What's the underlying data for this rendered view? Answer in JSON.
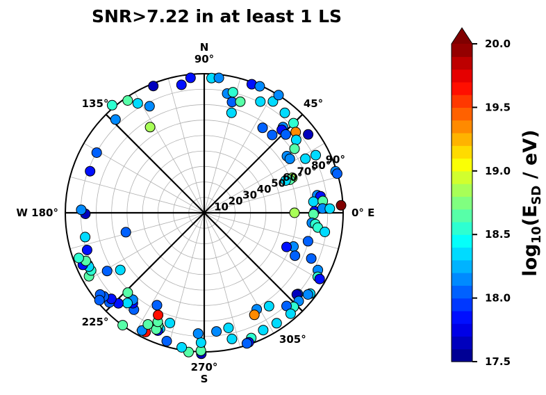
{
  "chart_data": {
    "type": "scatter",
    "subtype": "polar-skyplot",
    "title": "SNR>7.22 in at least 1 LS",
    "azimuth_labels": [
      {
        "az": 0,
        "text": "0° E"
      },
      {
        "az": 45,
        "text": "45°"
      },
      {
        "az": 90,
        "text": "90°",
        "extra": "N"
      },
      {
        "az": 135,
        "text": "135°"
      },
      {
        "az": 180,
        "text": "W  180°"
      },
      {
        "az": 225,
        "text": "225°"
      },
      {
        "az": 270,
        "text": "270°",
        "extra": "S"
      },
      {
        "az": 305,
        "text": "305°"
      }
    ],
    "sector_lines_az": [
      45,
      90,
      135,
      180,
      225,
      270,
      315,
      360
    ],
    "radial_ticks": [
      {
        "r": 10,
        "text": "10"
      },
      {
        "r": 20,
        "text": "20"
      },
      {
        "r": 30,
        "text": "30"
      },
      {
        "r": 40,
        "text": "40"
      },
      {
        "r": 50,
        "text": "50"
      },
      {
        "r": 60,
        "text": "60°"
      },
      {
        "r": 70,
        "text": "70°"
      },
      {
        "r": 80,
        "text": "80°"
      },
      {
        "r": 90,
        "text": "90°"
      }
    ],
    "radial_label_az": 22.5,
    "r_range": [
      0,
      90
    ],
    "grid": true,
    "points": [
      {
        "az": 86.9,
        "r": 87.3,
        "v": 18.4
      },
      {
        "az": 83.8,
        "r": 87.8,
        "v": 18.1
      },
      {
        "az": 95.8,
        "r": 87.8,
        "v": 17.9
      },
      {
        "az": 100.1,
        "r": 84.1,
        "v": 17.9
      },
      {
        "az": 111.9,
        "r": 88.4,
        "v": 17.7
      },
      {
        "az": 117.2,
        "r": 77.5,
        "v": 18.2
      },
      {
        "az": 121.3,
        "r": 82.9,
        "v": 18.4
      },
      {
        "az": 124.3,
        "r": 88.0,
        "v": 18.6
      },
      {
        "az": 133.6,
        "r": 83.3,
        "v": 18.2
      },
      {
        "az": 130.6,
        "r": 91.7,
        "v": 18.5
      },
      {
        "az": 122.3,
        "r": 65.6,
        "v": 18.8
      },
      {
        "az": 150.8,
        "r": 79.8,
        "v": 18.0
      },
      {
        "az": 160.0,
        "r": 78.7,
        "v": 17.9
      },
      {
        "az": 79.1,
        "r": 78.6,
        "v": 18.2
      },
      {
        "az": 76.6,
        "r": 80.2,
        "v": 18.5
      },
      {
        "az": 75.9,
        "r": 73.9,
        "v": 18.0
      },
      {
        "az": 74.7,
        "r": 67.1,
        "v": 18.4
      },
      {
        "az": 72.0,
        "r": 75.6,
        "v": 18.7
      },
      {
        "az": 69.7,
        "r": 88.7,
        "v": 17.9
      },
      {
        "az": 66.3,
        "r": 89.4,
        "v": 18.2
      },
      {
        "az": 63.2,
        "r": 80.6,
        "v": 18.3
      },
      {
        "az": 58.3,
        "r": 84.7,
        "v": 18.4
      },
      {
        "az": 57.7,
        "r": 90.1,
        "v": 18.2
      },
      {
        "az": 55.5,
        "r": 66.7,
        "v": 18.0
      },
      {
        "az": 51.1,
        "r": 83.1,
        "v": 18.4
      },
      {
        "az": 48.8,
        "r": 66.9,
        "v": 18.0
      },
      {
        "az": 47.4,
        "r": 75.4,
        "v": 18.1
      },
      {
        "az": 46.9,
        "r": 73.5,
        "v": 17.9
      },
      {
        "az": 45.1,
        "r": 81.9,
        "v": 18.5
      },
      {
        "az": 43.8,
        "r": 73.2,
        "v": 18.0
      },
      {
        "az": 41.4,
        "r": 79.0,
        "v": 19.4
      },
      {
        "az": 38.4,
        "r": 76.0,
        "v": 18.4
      },
      {
        "az": 37.0,
        "r": 84.3,
        "v": 17.7
      },
      {
        "az": 35.3,
        "r": 71.7,
        "v": 18.6
      },
      {
        "az": 34.4,
        "r": 64.9,
        "v": 18.1
      },
      {
        "az": 32.2,
        "r": 65.5,
        "v": 18.2
      },
      {
        "az": 28.1,
        "r": 74.3,
        "v": 18.4
      },
      {
        "az": 27.3,
        "r": 81.3,
        "v": 18.3
      },
      {
        "az": 21.7,
        "r": 61.4,
        "v": 18.8
      },
      {
        "az": 21.1,
        "r": 59.4,
        "v": 18.6
      },
      {
        "az": 21.6,
        "r": 56.7,
        "v": 18.3
      },
      {
        "az": 17.5,
        "r": 89.2,
        "v": 18.2
      },
      {
        "az": 16.4,
        "r": 89.8,
        "v": 18.0
      },
      {
        "az": 3.1,
        "r": 88.8,
        "v": 20.1
      },
      {
        "az": 0.8,
        "r": 71.5,
        "v": 17.9
      },
      {
        "az": 359.3,
        "r": 70.8,
        "v": 18.6
      },
      {
        "az": 8.8,
        "r": 74.1,
        "v": 18.2
      },
      {
        "az": 8.1,
        "r": 76.1,
        "v": 17.9
      },
      {
        "az": 5.8,
        "r": 71.1,
        "v": 18.3
      },
      {
        "az": 5.7,
        "r": 77.2,
        "v": 18.6
      },
      {
        "az": 2.1,
        "r": 76.7,
        "v": 18.2
      },
      {
        "az": 1.9,
        "r": 81.4,
        "v": 18.3
      },
      {
        "az": 0.0,
        "r": 58.5,
        "v": 18.8
      },
      {
        "az": 354.7,
        "r": 70.0,
        "v": 18.2
      },
      {
        "az": 354.2,
        "r": 72.3,
        "v": 18.5
      },
      {
        "az": 352.6,
        "r": 74.2,
        "v": 18.5
      },
      {
        "az": 351.0,
        "r": 79.1,
        "v": 18.3
      },
      {
        "az": 344.7,
        "r": 69.7,
        "v": 18.0
      },
      {
        "az": 339.3,
        "r": 61.8,
        "v": 18.2
      },
      {
        "az": 337.5,
        "r": 57.7,
        "v": 17.9
      },
      {
        "az": 334.7,
        "r": 65.0,
        "v": 18.0
      },
      {
        "az": 336.9,
        "r": 75.4,
        "v": 18.0
      },
      {
        "az": 333.3,
        "r": 82.4,
        "v": 18.1
      },
      {
        "az": 330.6,
        "r": 84.4,
        "v": 18.5
      },
      {
        "az": 330.2,
        "r": 86.2,
        "v": 17.9
      },
      {
        "az": 322.7,
        "r": 86.3,
        "v": 18.3
      },
      {
        "az": 321.8,
        "r": 85.5,
        "v": 18.2
      },
      {
        "az": 319.1,
        "r": 80.3,
        "v": 18.0
      },
      {
        "az": 318.6,
        "r": 79.9,
        "v": 17.7
      },
      {
        "az": 317.0,
        "r": 83.7,
        "v": 18.1
      },
      {
        "az": 313.6,
        "r": 84.0,
        "v": 18.5
      },
      {
        "az": 311.5,
        "r": 80.5,
        "v": 18.0
      },
      {
        "az": 310.6,
        "r": 86.0,
        "v": 18.3
      },
      {
        "az": 304.8,
        "r": 73.6,
        "v": 18.4
      },
      {
        "az": 303.3,
        "r": 85.5,
        "v": 18.4
      },
      {
        "az": 298.6,
        "r": 71.1,
        "v": 18.1
      },
      {
        "az": 296.2,
        "r": 73.6,
        "v": 19.4
      },
      {
        "az": 296.7,
        "r": 85.0,
        "v": 18.3
      },
      {
        "az": 290.6,
        "r": 86.6,
        "v": 18.5
      },
      {
        "az": 289.0,
        "r": 88.6,
        "v": 17.8
      },
      {
        "az": 288.1,
        "r": 88.9,
        "v": 18.0
      },
      {
        "az": 282.4,
        "r": 83.6,
        "v": 18.4
      },
      {
        "az": 281.9,
        "r": 76.1,
        "v": 18.3
      },
      {
        "az": 275.9,
        "r": 77.2,
        "v": 18.1
      },
      {
        "az": 268.8,
        "r": 91.3,
        "v": 17.7
      },
      {
        "az": 268.6,
        "r": 89.3,
        "v": 18.6
      },
      {
        "az": 268.6,
        "r": 84.0,
        "v": 18.3
      },
      {
        "az": 267.1,
        "r": 78.2,
        "v": 18.1
      },
      {
        "az": 263.6,
        "r": 90.7,
        "v": 18.6
      },
      {
        "az": 260.5,
        "r": 88.3,
        "v": 18.4
      },
      {
        "az": 253.7,
        "r": 86.5,
        "v": 18.0
      },
      {
        "az": 252.7,
        "r": 74.7,
        "v": 18.4
      },
      {
        "az": 249.1,
        "r": 80.3,
        "v": 18.4
      },
      {
        "az": 248.5,
        "r": 82.0,
        "v": 17.9
      },
      {
        "az": 247.7,
        "r": 78.5,
        "v": 18.6
      },
      {
        "az": 247.6,
        "r": 81.6,
        "v": 18.6
      },
      {
        "az": 246.9,
        "r": 76.7,
        "v": 18.6
      },
      {
        "az": 245.7,
        "r": 72.6,
        "v": 19.6
      },
      {
        "az": 243.8,
        "r": 86.0,
        "v": 19.7
      },
      {
        "az": 242.1,
        "r": 86.2,
        "v": 18.1
      },
      {
        "az": 243.2,
        "r": 80.9,
        "v": 18.6
      },
      {
        "az": 242.9,
        "r": 67.2,
        "v": 18.0
      },
      {
        "az": 234.0,
        "r": 89.9,
        "v": 18.7
      },
      {
        "az": 234.0,
        "r": 77.5,
        "v": 18.0
      },
      {
        "az": 231.7,
        "r": 74.6,
        "v": 17.8
      },
      {
        "az": 230.6,
        "r": 72.8,
        "v": 18.1
      },
      {
        "az": 229.6,
        "r": 76.7,
        "v": 18.3
      },
      {
        "az": 226.5,
        "r": 80.8,
        "v": 17.9
      },
      {
        "az": 226.2,
        "r": 71.6,
        "v": 18.6
      },
      {
        "az": 223.4,
        "r": 84.5,
        "v": 18.0
      },
      {
        "az": 222.8,
        "r": 82.0,
        "v": 17.9
      },
      {
        "az": 219.8,
        "r": 84.6,
        "v": 18.0
      },
      {
        "az": 218.1,
        "r": 85.7,
        "v": 18.0
      },
      {
        "az": 219.8,
        "r": 88.3,
        "v": 18.0
      },
      {
        "az": 214.2,
        "r": 65.7,
        "v": 18.4
      },
      {
        "az": 210.9,
        "r": 73.3,
        "v": 18.0
      },
      {
        "az": 208.8,
        "r": 85.2,
        "v": 18.6
      },
      {
        "az": 207.0,
        "r": 82.2,
        "v": 18.5
      },
      {
        "az": 204.0,
        "r": 82.5,
        "v": 18.4
      },
      {
        "az": 205.0,
        "r": 82.4,
        "v": 18.4
      },
      {
        "az": 203.2,
        "r": 85.6,
        "v": 17.8
      },
      {
        "az": 202.1,
        "r": 82.8,
        "v": 18.6
      },
      {
        "az": 199.8,
        "r": 86.4,
        "v": 18.5
      },
      {
        "az": 197.6,
        "r": 79.6,
        "v": 17.8
      },
      {
        "az": 193.9,
        "r": 52.3,
        "v": 18.0
      },
      {
        "az": 191.5,
        "r": 78.7,
        "v": 18.3
      },
      {
        "az": 180.5,
        "r": 77.0,
        "v": 17.7
      },
      {
        "az": 178.6,
        "r": 79.7,
        "v": 18.2
      }
    ],
    "colorbar": {
      "label": "log10(ESD / eV)",
      "label_base": "log",
      "label_sub1": "10",
      "label_mid": "(E",
      "label_sub2": "SD",
      "label_tail": " / eV)",
      "min": 17.5,
      "max": 20.0,
      "extend": "max",
      "bins": 25,
      "ticks": [
        {
          "v": 17.5,
          "text": "17.5"
        },
        {
          "v": 18.0,
          "text": "18.0"
        },
        {
          "v": 18.5,
          "text": "18.5"
        },
        {
          "v": 19.0,
          "text": "19.0"
        },
        {
          "v": 19.5,
          "text": "19.5"
        },
        {
          "v": 20.0,
          "text": "20.0"
        }
      ],
      "colormap": "jet"
    }
  }
}
